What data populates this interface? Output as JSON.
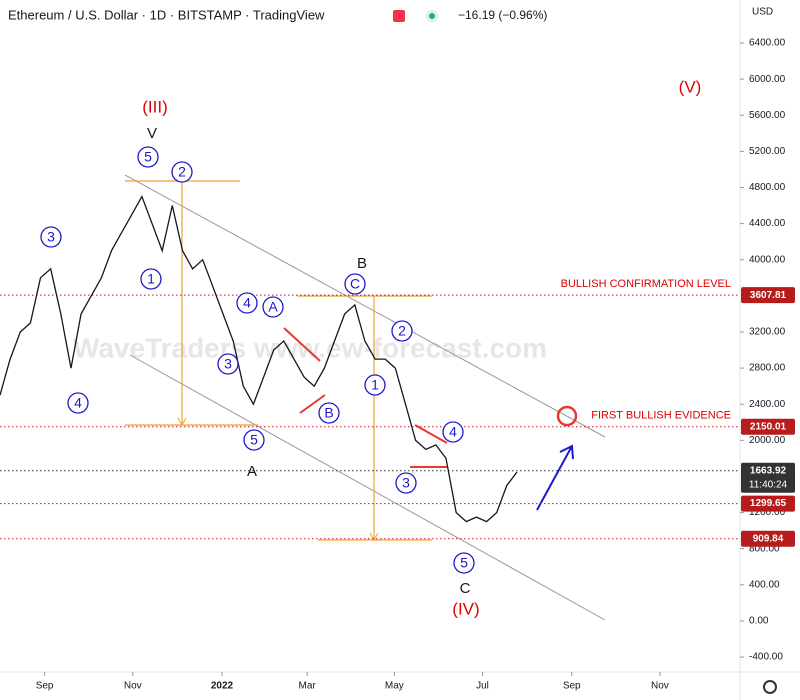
{
  "chart_data": {
    "type": "line",
    "title": "Ethereum / U.S. Dollar · 1D · BITSTAMP · TradingView",
    "change": "−16.19 (−0.96%)",
    "currency": "USD",
    "watermark": "WaveTraders www.ew-forecast.com",
    "countdown": "11:40:24",
    "values": [
      2500,
      2900,
      3200,
      3300,
      3800,
      3900,
      3400,
      2800,
      3400,
      3600,
      3800,
      4100,
      4300,
      4500,
      4700,
      4400,
      4100,
      4600,
      4100,
      3900,
      4000,
      3700,
      3400,
      3100,
      2600,
      2400,
      2700,
      3000,
      3100,
      2900,
      2700,
      2600,
      2800,
      3100,
      3400,
      3500,
      3100,
      2900,
      2900,
      2800,
      2400,
      2000,
      1900,
      1950,
      1800,
      1200,
      1100,
      1150,
      1100,
      1200,
      1500,
      1650
    ],
    "color": "#131722",
    "xlim": [
      0,
      73
    ],
    "ylim": [
      -565,
      6876
    ],
    "xticks": [
      {
        "value": 4.4,
        "label": "Sep"
      },
      {
        "value": 13.1,
        "label": "Nov"
      },
      {
        "value": 21.9,
        "label": "2022"
      },
      {
        "value": 30.3,
        "label": "Mar"
      },
      {
        "value": 38.9,
        "label": "May"
      },
      {
        "value": 47.6,
        "label": "Jul"
      },
      {
        "value": 56.4,
        "label": "Sep"
      },
      {
        "value": 65.1,
        "label": "Nov"
      }
    ],
    "yticks": [
      {
        "value": 6400,
        "label": "6400.00"
      },
      {
        "value": 6000,
        "label": "6000.00"
      },
      {
        "value": 5600,
        "label": "5600.00"
      },
      {
        "value": 5200,
        "label": "5200.00"
      },
      {
        "value": 4800,
        "label": "4800.00"
      },
      {
        "value": 4400,
        "label": "4400.00"
      },
      {
        "value": 4000,
        "label": "4000.00"
      },
      {
        "value": 3200,
        "label": "3200.00"
      },
      {
        "value": 2800,
        "label": "2800.00"
      },
      {
        "value": 2400,
        "label": "2400.00"
      },
      {
        "value": 2000,
        "label": "2000.00"
      },
      {
        "value": 1200,
        "label": "1200.00"
      },
      {
        "value": 800,
        "label": "800.00"
      },
      {
        "value": 400,
        "label": "400.00"
      },
      {
        "value": 0,
        "label": "0.00"
      },
      {
        "value": -400,
        "label": "-400.00"
      }
    ],
    "levels": [
      {
        "value": 3607.81,
        "color": "#b71c1c",
        "note": "BULLISH CONFIRMATION LEVEL"
      },
      {
        "value": 2150.01,
        "color": "#b71c1c",
        "note": "FIRST BULLISH EVIDENCE"
      },
      {
        "value": 1663.92,
        "color": "#333333"
      },
      {
        "value": 1299.65,
        "color": "#b71c1c"
      },
      {
        "value": 909.84,
        "color": "#b71c1c"
      }
    ],
    "annotations": [
      "3",
      "4",
      "1",
      "5",
      "2",
      "4",
      "A",
      "3",
      "5",
      "B",
      "C",
      "2",
      "1",
      "4",
      "3",
      "5",
      "V",
      "(III)",
      "A",
      "B",
      "C",
      "(IV)",
      "(V)"
    ]
  }
}
